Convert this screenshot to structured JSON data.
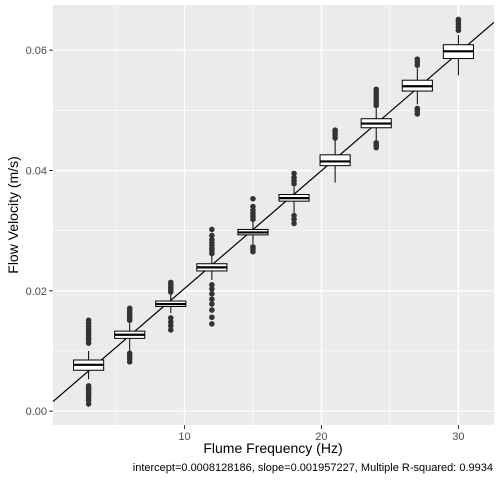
{
  "chart_data": {
    "type": "boxplot",
    "xlabel": "Flume Frequency (Hz)",
    "ylabel": "Flow Velocity (m/s)",
    "caption": "intercept=0.0008128186, slope=0.001957227, Multiple R-squared:  0.9934",
    "xlim": [
      0.4,
      32.6
    ],
    "ylim": [
      -0.0023,
      0.0675
    ],
    "x_ticks": [
      10,
      20,
      30
    ],
    "x_tick_labels": [
      "10",
      "20",
      "30"
    ],
    "y_ticks": [
      0.0,
      0.02,
      0.04,
      0.06
    ],
    "y_tick_labels": [
      "0.00",
      "0.02",
      "0.04",
      "0.06"
    ],
    "grid": true,
    "background": "#ebebeb",
    "grid_color": "#ffffff",
    "box_fill": "#ffffff",
    "line_color": "#000000",
    "point_color": "#333333",
    "fit_line": {
      "intercept": 0.0008128186,
      "slope": 0.001957227
    },
    "boxes": [
      {
        "x": 3,
        "lower_whisker": 0.0053,
        "q1": 0.0068,
        "median": 0.0077,
        "q3": 0.0085,
        "upper_whisker": 0.01,
        "outliers": [
          0.0012,
          0.0018,
          0.0023,
          0.0027,
          0.0031,
          0.0035,
          0.0038,
          0.0042,
          0.0113,
          0.0118,
          0.0122,
          0.0127,
          0.0131,
          0.0136,
          0.0141,
          0.0146,
          0.0151
        ]
      },
      {
        "x": 6,
        "lower_whisker": 0.01,
        "q1": 0.0121,
        "median": 0.0127,
        "q3": 0.0133,
        "upper_whisker": 0.0146,
        "outliers": [
          0.0082,
          0.0087,
          0.0091,
          0.0096,
          0.0151,
          0.0155,
          0.0159,
          0.0163,
          0.0167,
          0.0171
        ]
      },
      {
        "x": 9,
        "lower_whisker": 0.0163,
        "q1": 0.0174,
        "median": 0.0178,
        "q3": 0.0183,
        "upper_whisker": 0.0194,
        "outliers": [
          0.0135,
          0.0142,
          0.0148,
          0.0155,
          0.0198,
          0.0202,
          0.0206,
          0.021,
          0.0214
        ]
      },
      {
        "x": 12,
        "lower_whisker": 0.0218,
        "q1": 0.0233,
        "median": 0.0239,
        "q3": 0.0245,
        "upper_whisker": 0.0258,
        "outliers": [
          0.0145,
          0.0156,
          0.0168,
          0.0178,
          0.0186,
          0.0195,
          0.0203,
          0.021,
          0.0262,
          0.0267,
          0.0271,
          0.0276,
          0.028,
          0.0285,
          0.0292,
          0.0302
        ]
      },
      {
        "x": 15,
        "lower_whisker": 0.0278,
        "q1": 0.0293,
        "median": 0.0297,
        "q3": 0.0302,
        "upper_whisker": 0.0315,
        "outliers": [
          0.0265,
          0.0269,
          0.0273,
          0.0319,
          0.0324,
          0.0329,
          0.0334,
          0.034,
          0.0353
        ]
      },
      {
        "x": 18,
        "lower_whisker": 0.033,
        "q1": 0.0349,
        "median": 0.0354,
        "q3": 0.036,
        "upper_whisker": 0.0373,
        "outliers": [
          0.0312,
          0.0319,
          0.0325,
          0.0378,
          0.0383,
          0.0388,
          0.0395
        ]
      },
      {
        "x": 21,
        "lower_whisker": 0.038,
        "q1": 0.0408,
        "median": 0.0415,
        "q3": 0.0426,
        "upper_whisker": 0.045,
        "outliers": [
          0.0454,
          0.0459,
          0.0463,
          0.0467
        ]
      },
      {
        "x": 24,
        "lower_whisker": 0.045,
        "q1": 0.0471,
        "median": 0.0478,
        "q3": 0.0486,
        "upper_whisker": 0.0503,
        "outliers": [
          0.0438,
          0.0442,
          0.0446,
          0.0508,
          0.0512,
          0.0516,
          0.052,
          0.0525,
          0.053,
          0.0535
        ]
      },
      {
        "x": 27,
        "lower_whisker": 0.051,
        "q1": 0.0532,
        "median": 0.054,
        "q3": 0.055,
        "upper_whisker": 0.057,
        "outliers": [
          0.0494,
          0.0499,
          0.0503,
          0.0575,
          0.058,
          0.0585
        ]
      },
      {
        "x": 30,
        "lower_whisker": 0.0558,
        "q1": 0.0586,
        "median": 0.0598,
        "q3": 0.0609,
        "upper_whisker": 0.0625,
        "outliers": [
          0.0633,
          0.0638,
          0.0643,
          0.0648,
          0.0651
        ]
      }
    ]
  }
}
